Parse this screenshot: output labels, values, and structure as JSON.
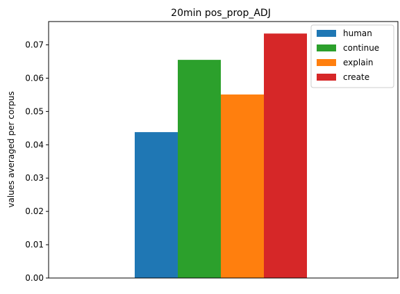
{
  "chart_data": {
    "type": "bar",
    "title": "20min pos_prop_ADJ",
    "xlabel": "",
    "ylabel": "values averaged per corpus",
    "categories": [
      ""
    ],
    "series": [
      {
        "name": "human",
        "values": [
          0.0438
        ],
        "color": "#1f77b4"
      },
      {
        "name": "continue",
        "values": [
          0.0655
        ],
        "color": "#2ca02c"
      },
      {
        "name": "explain",
        "values": [
          0.0551
        ],
        "color": "#ff7f0e"
      },
      {
        "name": "create",
        "values": [
          0.0734
        ],
        "color": "#d62728"
      }
    ],
    "ylim": [
      0,
      0.077
    ],
    "yticks": [
      "0.00",
      "0.01",
      "0.02",
      "0.03",
      "0.04",
      "0.05",
      "0.06",
      "0.07"
    ],
    "grid": false,
    "legend_position": "top-right"
  }
}
